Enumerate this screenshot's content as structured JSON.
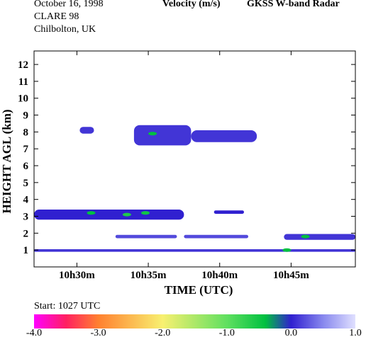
{
  "header": {
    "date": "October  16, 1998",
    "campaign": "CLARE 98",
    "location": "Chilbolton, UK",
    "quantity": "Velocity (m/s)",
    "instrument": "GKSS  W-band Radar"
  },
  "start_label": "Start: 1027 UTC",
  "colors": {
    "radar_blue": "#4040cc",
    "radar_green": "#20d040",
    "near_zero": "#6ce070"
  },
  "chart_data": {
    "type": "heatmap",
    "title": "Velocity (m/s)",
    "xlabel": "TIME (UTC)",
    "ylabel": "HEIGHT AGL (km)",
    "x_unit": "minutes after 10h00 UTC",
    "xlim": [
      27.0,
      49.5
    ],
    "ylim": [
      0,
      12.8
    ],
    "x_ticks": [
      {
        "value": 30,
        "label": "10h30m"
      },
      {
        "value": 35,
        "label": "10h35m"
      },
      {
        "value": 40,
        "label": "10h40m"
      },
      {
        "value": 45,
        "label": "10h45m"
      }
    ],
    "y_ticks": [
      1,
      2,
      3,
      4,
      5,
      6,
      7,
      8,
      9,
      10,
      11,
      12
    ],
    "colorbar": {
      "range": [
        -4.0,
        1.0
      ],
      "tick_labels": [
        "-4.0",
        "-3.0",
        "-2.0",
        "-1.0",
        "0.0",
        "1.0"
      ],
      "stops": [
        {
          "value": -4.0,
          "color": "#ff00ff"
        },
        {
          "value": -3.5,
          "color": "#ff2060"
        },
        {
          "value": -3.0,
          "color": "#ff8030"
        },
        {
          "value": -2.0,
          "color": "#f8f070"
        },
        {
          "value": -1.0,
          "color": "#60e060"
        },
        {
          "value": -0.4,
          "color": "#00c040"
        },
        {
          "value": 0.0,
          "color": "#3020d0"
        },
        {
          "value": 0.5,
          "color": "#8888ee"
        },
        {
          "value": 1.0,
          "color": "#e0e0ff"
        }
      ]
    },
    "echo_regions": [
      {
        "name": "upper cloud east",
        "t_start": 34.0,
        "t_end": 38.0,
        "h_bottom": 7.2,
        "h_top": 8.4,
        "velocity": 0.1
      },
      {
        "name": "upper cloud west",
        "t_start": 38.0,
        "t_end": 42.6,
        "h_bottom": 7.4,
        "h_top": 8.1,
        "velocity": 0.1
      },
      {
        "name": "small upper cloud",
        "t_start": 30.2,
        "t_end": 31.2,
        "h_bottom": 7.9,
        "h_top": 8.3,
        "velocity": 0.1
      },
      {
        "name": "mid layer",
        "t_start": 27.0,
        "t_end": 37.5,
        "h_bottom": 2.8,
        "h_top": 3.4,
        "velocity": 0.0
      },
      {
        "name": "mid fragment",
        "t_start": 39.6,
        "t_end": 41.7,
        "h_bottom": 3.15,
        "h_top": 3.35,
        "velocity": 0.0
      },
      {
        "name": "low layer A",
        "t_start": 32.7,
        "t_end": 37.0,
        "h_bottom": 1.7,
        "h_top": 1.9,
        "velocity": 0.2
      },
      {
        "name": "low layer B",
        "t_start": 37.5,
        "t_end": 42.0,
        "h_bottom": 1.7,
        "h_top": 1.9,
        "velocity": 0.2
      },
      {
        "name": "low layer C",
        "t_start": 44.5,
        "t_end": 49.5,
        "h_bottom": 1.6,
        "h_top": 1.95,
        "velocity": 0.1
      },
      {
        "name": "surface clutter",
        "t_start": 27.0,
        "t_end": 49.5,
        "h_bottom": 0.9,
        "h_top": 1.05,
        "velocity": 0.1
      }
    ],
    "green_patches": [
      {
        "t": 35.3,
        "h": 7.9,
        "velocity": -0.4
      },
      {
        "t": 33.5,
        "h": 3.1,
        "velocity": -0.6
      },
      {
        "t": 34.8,
        "h": 3.2,
        "velocity": -0.5
      },
      {
        "t": 31.0,
        "h": 3.2,
        "velocity": -0.4
      },
      {
        "t": 44.7,
        "h": 1.0,
        "velocity": -0.4
      },
      {
        "t": 46.0,
        "h": 1.8,
        "velocity": -0.4
      }
    ]
  }
}
